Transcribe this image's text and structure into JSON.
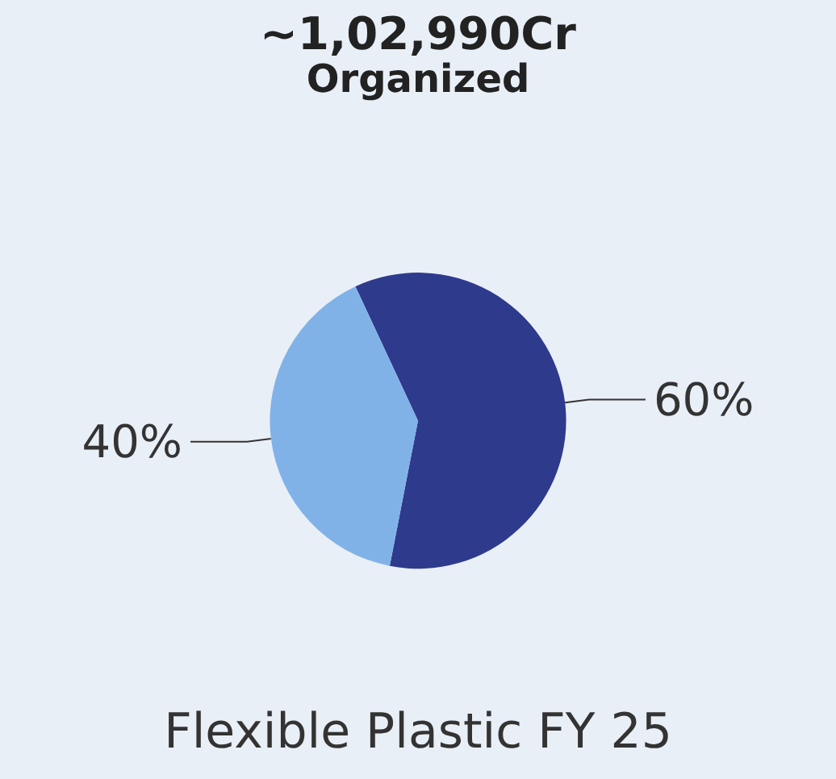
{
  "chart_data": {
    "type": "pie",
    "title": "~1,02,990Cr",
    "subtitle": "Organized",
    "categories": [
      null,
      null
    ],
    "values": [
      60,
      40
    ],
    "colors": [
      "#2e3a8c",
      "#80b2e8"
    ],
    "value_labels": [
      "60%",
      "40%"
    ],
    "annotations": [
      "Flexible Plastic FY 25"
    ]
  }
}
